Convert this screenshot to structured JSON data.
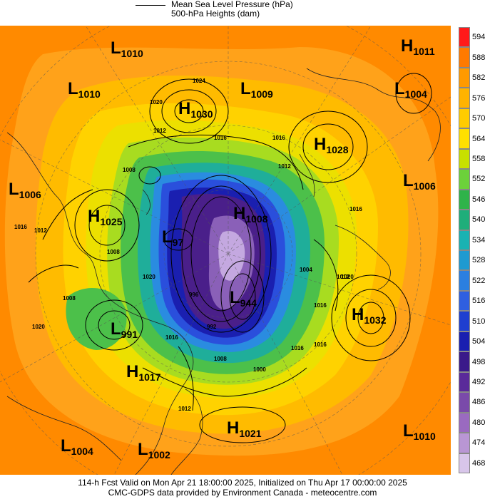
{
  "legend": {
    "mslp_label": "Mean Sea Level Pressure (hPa)",
    "heights_label": "500-hPa Heights (dam)"
  },
  "colorbar": {
    "labels": [
      "594",
      "588",
      "582",
      "576",
      "570",
      "564",
      "558",
      "552",
      "546",
      "540",
      "534",
      "528",
      "522",
      "516",
      "510",
      "504",
      "498",
      "492",
      "486",
      "480",
      "474",
      "468"
    ],
    "colors": [
      "#ff1a1a",
      "#ff7a00",
      "#ff9a00",
      "#ffb300",
      "#ffcc00",
      "#ffe000",
      "#c8e000",
      "#6cd13a",
      "#2fb34a",
      "#1fae7a",
      "#1ab2b2",
      "#1f9ad0",
      "#2b7fe0",
      "#2f5fe0",
      "#1f3fd0",
      "#1a1fb0",
      "#3a1a8a",
      "#5a2a9a",
      "#7a4aaa",
      "#9a6ac0",
      "#b996d4",
      "#d8c6ea"
    ]
  },
  "centers": [
    {
      "type": "L",
      "value": "1010"
    },
    {
      "type": "H",
      "value": "1011"
    },
    {
      "type": "L",
      "value": "1010"
    },
    {
      "type": "L",
      "value": "1009"
    },
    {
      "type": "L",
      "value": "1004"
    },
    {
      "type": "H",
      "value": "1030"
    },
    {
      "type": "H",
      "value": "1028"
    },
    {
      "type": "L",
      "value": "1006"
    },
    {
      "type": "L",
      "value": "1006"
    },
    {
      "type": "H",
      "value": "1025"
    },
    {
      "type": "H",
      "value": "1008"
    },
    {
      "type": "L",
      "value": "97"
    },
    {
      "type": "L",
      "value": "944"
    },
    {
      "type": "H",
      "value": "1032"
    },
    {
      "type": "L",
      "value": "991"
    },
    {
      "type": "H",
      "value": "1017"
    },
    {
      "type": "H",
      "value": "1021"
    },
    {
      "type": "L",
      "value": "1004"
    },
    {
      "type": "L",
      "value": "1002"
    },
    {
      "type": "L",
      "value": "1010"
    }
  ],
  "isobar_labels": [
    "1024",
    "1020",
    "1012",
    "1016",
    "1008",
    "1016",
    "1012",
    "1008",
    "1016",
    "1012",
    "1020",
    "1016",
    "1008",
    "1012",
    "1020",
    "1016",
    "1016",
    "1008",
    "1000",
    "1016",
    "996",
    "992",
    "1004",
    "1012",
    "1016",
    "1020"
  ],
  "footer": {
    "line1": "114-h Fcst Valid on Mon Apr 21 18:00:00 2025, Initialized on Thu Apr 17 00:00:00 2025",
    "line2": "CMC-GDPS data provided by Environment Canada - meteocentre.com"
  }
}
